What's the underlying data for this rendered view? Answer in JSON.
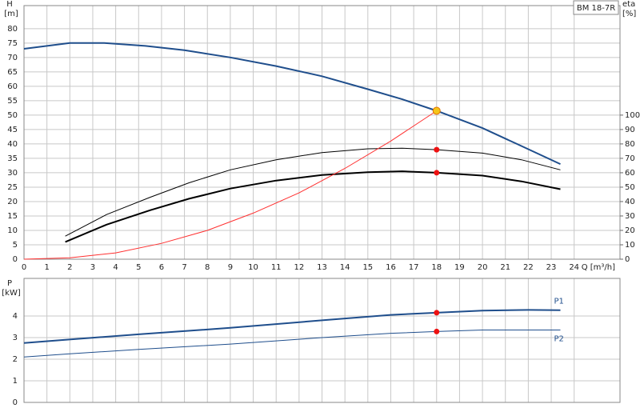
{
  "chart_data": [
    {
      "type": "line",
      "label_box": "BM 18-7R",
      "y_label": "H",
      "y_unit": "[m]",
      "y2_label": "eta",
      "y2_unit": "[%]",
      "x_label": "Q [m³/h]",
      "xlim": [
        0,
        26
      ],
      "xticks": [
        0,
        1,
        2,
        3,
        4,
        5,
        6,
        7,
        8,
        9,
        10,
        11,
        12,
        13,
        14,
        15,
        16,
        17,
        18,
        19,
        20,
        21,
        22,
        23,
        24
      ],
      "ylim": [
        0,
        88
      ],
      "yticks": [
        0,
        5,
        10,
        15,
        20,
        25,
        30,
        35,
        40,
        45,
        50,
        55,
        60,
        65,
        70,
        75,
        80
      ],
      "y2lim": [
        0,
        176
      ],
      "y2ticks": [
        0,
        10,
        20,
        30,
        40,
        50,
        60,
        70,
        80,
        90,
        100
      ],
      "grid": true,
      "series": [
        {
          "color": "#1f4e8c",
          "width": 2,
          "x": [
            0,
            2,
            3.5,
            5.3,
            7,
            9,
            11,
            13,
            15,
            16.5,
            18,
            20,
            21.5,
            23.4
          ],
          "values": [
            73,
            75,
            75,
            74,
            72.5,
            70,
            67,
            63.5,
            59,
            55.5,
            51.5,
            45.5,
            40,
            33
          ]
        },
        {
          "color": "#000000",
          "width": 1,
          "axis": "y2",
          "x": [
            1.8,
            3.6,
            5.5,
            7.2,
            9,
            11,
            13,
            15,
            16.5,
            18,
            20,
            21.7,
            23.4
          ],
          "values": [
            16,
            31,
            43,
            53,
            62,
            69,
            74,
            76.6,
            77,
            76,
            73.6,
            69,
            62
          ]
        },
        {
          "color": "#000000",
          "width": 2,
          "axis": "y2",
          "x": [
            1.8,
            3.6,
            5.5,
            7.2,
            9,
            11,
            13,
            15,
            16.5,
            18,
            20,
            21.7,
            23.4
          ],
          "values": [
            12,
            24,
            34,
            42,
            49,
            54.6,
            58.4,
            60.4,
            61,
            60,
            58,
            54,
            48.6
          ]
        },
        {
          "color": "#ff3030",
          "width": 1,
          "x": [
            0,
            2,
            4,
            6,
            8,
            10,
            12,
            14,
            16,
            18
          ],
          "values": [
            0,
            0.5,
            2.2,
            5.5,
            10,
            16,
            23,
            31.5,
            41,
            51.5
          ]
        }
      ],
      "duty_points": [
        {
          "x": 18,
          "value": 51.5,
          "color": "#f5c518"
        },
        {
          "x": 18,
          "value": 76,
          "axis": "y2",
          "color": "#ee1111"
        },
        {
          "x": 18,
          "value": 60,
          "axis": "y2",
          "color": "#ee1111"
        }
      ]
    },
    {
      "type": "line",
      "y_label": "P",
      "y_unit": "[kW]",
      "xlim": [
        0,
        26
      ],
      "xticks": [
        0,
        1,
        2,
        3,
        4,
        5,
        6,
        7,
        8,
        9,
        10,
        11,
        12,
        13,
        14,
        15,
        16,
        17,
        18,
        19,
        20,
        21,
        22,
        23,
        24
      ],
      "ylim": [
        0,
        5.74
      ],
      "yticks": [
        0,
        1,
        2,
        3,
        4
      ],
      "grid": true,
      "series": [
        {
          "name": "P1",
          "color": "#1f4e8c",
          "width": 2,
          "x": [
            0,
            1.8,
            5,
            9,
            13,
            16,
            18,
            20,
            22,
            23.4
          ],
          "values": [
            2.75,
            2.9,
            3.15,
            3.45,
            3.8,
            4.05,
            4.15,
            4.25,
            4.28,
            4.27
          ]
        },
        {
          "name": "P2",
          "color": "#1f4e8c",
          "width": 1,
          "x": [
            0,
            2,
            5,
            9,
            13,
            16,
            18,
            20,
            23.4
          ],
          "values": [
            2.1,
            2.25,
            2.45,
            2.7,
            3.0,
            3.2,
            3.28,
            3.35,
            3.35
          ]
        }
      ],
      "duty_points": [
        {
          "x": 18,
          "value": 4.15,
          "color": "#ee1111"
        },
        {
          "x": 18,
          "value": 3.28,
          "color": "#ee1111"
        }
      ]
    }
  ]
}
